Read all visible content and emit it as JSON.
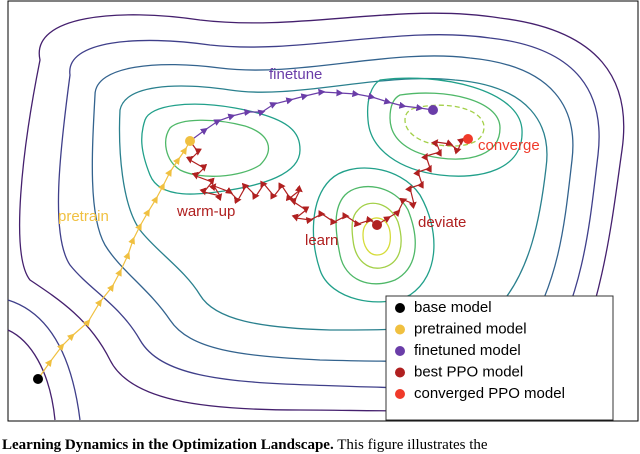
{
  "labels": {
    "pretrain": "pretrain",
    "warmup": "warm-up",
    "finetune": "finetune",
    "learn": "learn",
    "deviate": "deviate",
    "converge": "converge"
  },
  "legend": [
    {
      "label": "base model",
      "color": "#000000"
    },
    {
      "label": "pretrained model",
      "color": "#f0c040"
    },
    {
      "label": "finetuned model",
      "color": "#6a3da8"
    },
    {
      "label": "best PPO model",
      "color": "#b02020"
    },
    {
      "label": "converged PPO model",
      "color": "#f03a2a"
    }
  ],
  "caption": {
    "title": "Learning Dynamics in the Optimization Landscape.",
    "text": "This figure illustrates the"
  }
}
